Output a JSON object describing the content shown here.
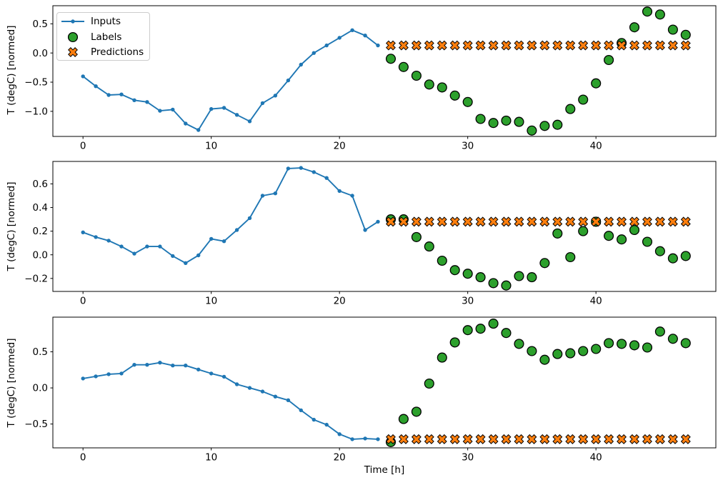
{
  "figure": {
    "background": "#ffffff"
  },
  "colors": {
    "inputs": "#1f77b4",
    "labels": "#2ca02c",
    "predictions": "#ff7f0e",
    "marker_edge": "#000000",
    "legend_border": "#cccccc",
    "text": "#000000"
  },
  "legend": {
    "items": [
      {
        "label": "Inputs",
        "marker": "line-dot"
      },
      {
        "label": "Labels",
        "marker": "circle"
      },
      {
        "label": "Predictions",
        "marker": "x"
      }
    ]
  },
  "xlabel": "Time [h]",
  "chart_data": [
    {
      "type": "line+scatter",
      "ylabel": "T (degC) [normed]",
      "xlim": [
        -2.35,
        49.35
      ],
      "ylim": [
        -1.43,
        0.81
      ],
      "xticks": [
        0,
        10,
        20,
        30,
        40
      ],
      "xtick_labels": [
        "0",
        "10",
        "20",
        "30",
        "40"
      ],
      "yticks": [
        0.5,
        0.0,
        -0.5,
        -1.0
      ],
      "ytick_labels": [
        "0.5",
        "0.0",
        "−0.5",
        "−1.0"
      ],
      "series": [
        {
          "name": "Inputs",
          "marker": "line-dot",
          "x_start": 0,
          "values": [
            -0.4,
            -0.57,
            -0.72,
            -0.71,
            -0.81,
            -0.84,
            -0.99,
            -0.97,
            -1.21,
            -1.32,
            -0.96,
            -0.94,
            -1.06,
            -1.17,
            -0.86,
            -0.73,
            -0.47,
            -0.2,
            0.0,
            0.13,
            0.26,
            0.39,
            0.3,
            0.13
          ]
        },
        {
          "name": "Labels",
          "marker": "circle",
          "x_start": 24,
          "values": [
            -0.1,
            -0.24,
            -0.39,
            -0.54,
            -0.59,
            -0.73,
            -0.84,
            -1.13,
            -1.2,
            -1.16,
            -1.18,
            -1.33,
            -1.25,
            -1.23,
            -0.96,
            -0.8,
            -0.52,
            -0.12,
            0.17,
            0.44,
            0.71,
            0.66,
            0.4,
            0.31
          ]
        },
        {
          "name": "Predictions",
          "marker": "x",
          "x_start": 24,
          "values": [
            0.13,
            0.13,
            0.13,
            0.13,
            0.13,
            0.13,
            0.13,
            0.13,
            0.13,
            0.13,
            0.13,
            0.13,
            0.13,
            0.13,
            0.13,
            0.13,
            0.13,
            0.13,
            0.13,
            0.13,
            0.13,
            0.13,
            0.13,
            0.13
          ]
        }
      ]
    },
    {
      "type": "line+scatter",
      "ylabel": "T (degC) [normed]",
      "xlim": [
        -2.35,
        49.35
      ],
      "ylim": [
        -0.31,
        0.79
      ],
      "xticks": [
        0,
        10,
        20,
        30,
        40
      ],
      "xtick_labels": [
        "0",
        "10",
        "20",
        "30",
        "40"
      ],
      "yticks": [
        0.6,
        0.4,
        0.2,
        0.0,
        -0.2
      ],
      "ytick_labels": [
        "0.6",
        "0.4",
        "0.2",
        "0.0",
        "−0.2"
      ],
      "series": [
        {
          "name": "Inputs",
          "marker": "line-dot",
          "x_start": 0,
          "values": [
            0.19,
            0.15,
            0.12,
            0.07,
            0.01,
            0.07,
            0.07,
            -0.01,
            -0.07,
            -0.005,
            0.135,
            0.115,
            0.21,
            0.31,
            0.5,
            0.52,
            0.73,
            0.735,
            0.7,
            0.65,
            0.54,
            0.5,
            0.21,
            0.28
          ]
        },
        {
          "name": "Labels",
          "marker": "circle",
          "x_start": 24,
          "values": [
            0.3,
            0.3,
            0.15,
            0.07,
            -0.05,
            -0.13,
            -0.16,
            -0.19,
            -0.24,
            -0.26,
            -0.18,
            -0.19,
            -0.07,
            0.18,
            -0.02,
            0.2,
            0.28,
            0.16,
            0.13,
            0.21,
            0.11,
            0.03,
            -0.03,
            -0.01
          ]
        },
        {
          "name": "Predictions",
          "marker": "x",
          "x_start": 24,
          "values": [
            0.28,
            0.28,
            0.28,
            0.28,
            0.28,
            0.28,
            0.28,
            0.28,
            0.28,
            0.28,
            0.28,
            0.28,
            0.28,
            0.28,
            0.28,
            0.28,
            0.28,
            0.28,
            0.28,
            0.28,
            0.28,
            0.28,
            0.28,
            0.28
          ]
        }
      ]
    },
    {
      "type": "line+scatter",
      "ylabel": "T (degC) [normed]",
      "xlim": [
        -2.35,
        49.35
      ],
      "ylim": [
        -0.83,
        0.98
      ],
      "xticks": [
        0,
        10,
        20,
        30,
        40
      ],
      "xtick_labels": [
        "0",
        "10",
        "20",
        "30",
        "40"
      ],
      "yticks": [
        0.5,
        0.0,
        -0.5
      ],
      "ytick_labels": [
        "0.5",
        "0.0",
        "−0.5"
      ],
      "series": [
        {
          "name": "Inputs",
          "marker": "line-dot",
          "x_start": 0,
          "values": [
            0.13,
            0.16,
            0.19,
            0.2,
            0.32,
            0.32,
            0.35,
            0.31,
            0.31,
            0.255,
            0.2,
            0.155,
            0.05,
            0.0,
            -0.05,
            -0.12,
            -0.17,
            -0.31,
            -0.44,
            -0.51,
            -0.64,
            -0.71,
            -0.7,
            -0.71
          ]
        },
        {
          "name": "Labels",
          "marker": "circle",
          "x_start": 24,
          "values": [
            -0.75,
            -0.43,
            -0.33,
            0.06,
            0.42,
            0.63,
            0.8,
            0.82,
            0.89,
            0.76,
            0.61,
            0.51,
            0.39,
            0.47,
            0.48,
            0.51,
            0.54,
            0.62,
            0.61,
            0.59,
            0.56,
            0.78,
            0.68,
            0.62
          ]
        },
        {
          "name": "Predictions",
          "marker": "x",
          "x_start": 24,
          "values": [
            -0.71,
            -0.71,
            -0.71,
            -0.71,
            -0.71,
            -0.71,
            -0.71,
            -0.71,
            -0.71,
            -0.71,
            -0.71,
            -0.71,
            -0.71,
            -0.71,
            -0.71,
            -0.71,
            -0.71,
            -0.71,
            -0.71,
            -0.71,
            -0.71,
            -0.71,
            -0.71,
            -0.71
          ]
        }
      ]
    }
  ]
}
